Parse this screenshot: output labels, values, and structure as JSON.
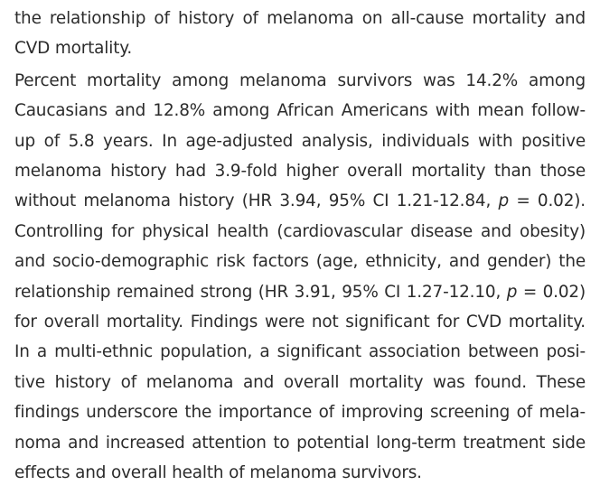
{
  "paragraph_1": {
    "lines": [
      "the relationship of history of melanoma on all-cause mortality and",
      "CVD mortality."
    ]
  },
  "paragraph_2": {
    "lines": [
      "Percent mortality among melanoma survivors was 14.2% among",
      "Caucasians and 12.8% among African Americans with mean follow-",
      "up of 5.8 years. In age-adjusted analysis, individuals with positive",
      "melanoma history had 3.9-fold higher overall mortality than those",
      {
        "before": "without melanoma history (HR 3.94, 95% CI 1.21-12.84, ",
        "p": "p",
        "after": " = 0.02)."
      },
      "Controlling for physical health (cardiovascular disease and obesity)",
      "and socio-demographic risk factors (age, ethnicity, and gender) the",
      {
        "before": "relationship remained strong (HR 3.91, 95% CI 1.27-12.10, ",
        "p": "p",
        "after": " = 0.02)"
      },
      "for overall mortality. Findings were not significant for CVD mortality.",
      "In a multi-ethnic population, a significant association between posi-",
      "tive history of melanoma and overall mortality was found. These",
      "findings underscore the importance of improving screening of mela-",
      "noma and increased attention to potential long-term treatment side",
      "effects and overall health of melanoma survivors."
    ]
  }
}
